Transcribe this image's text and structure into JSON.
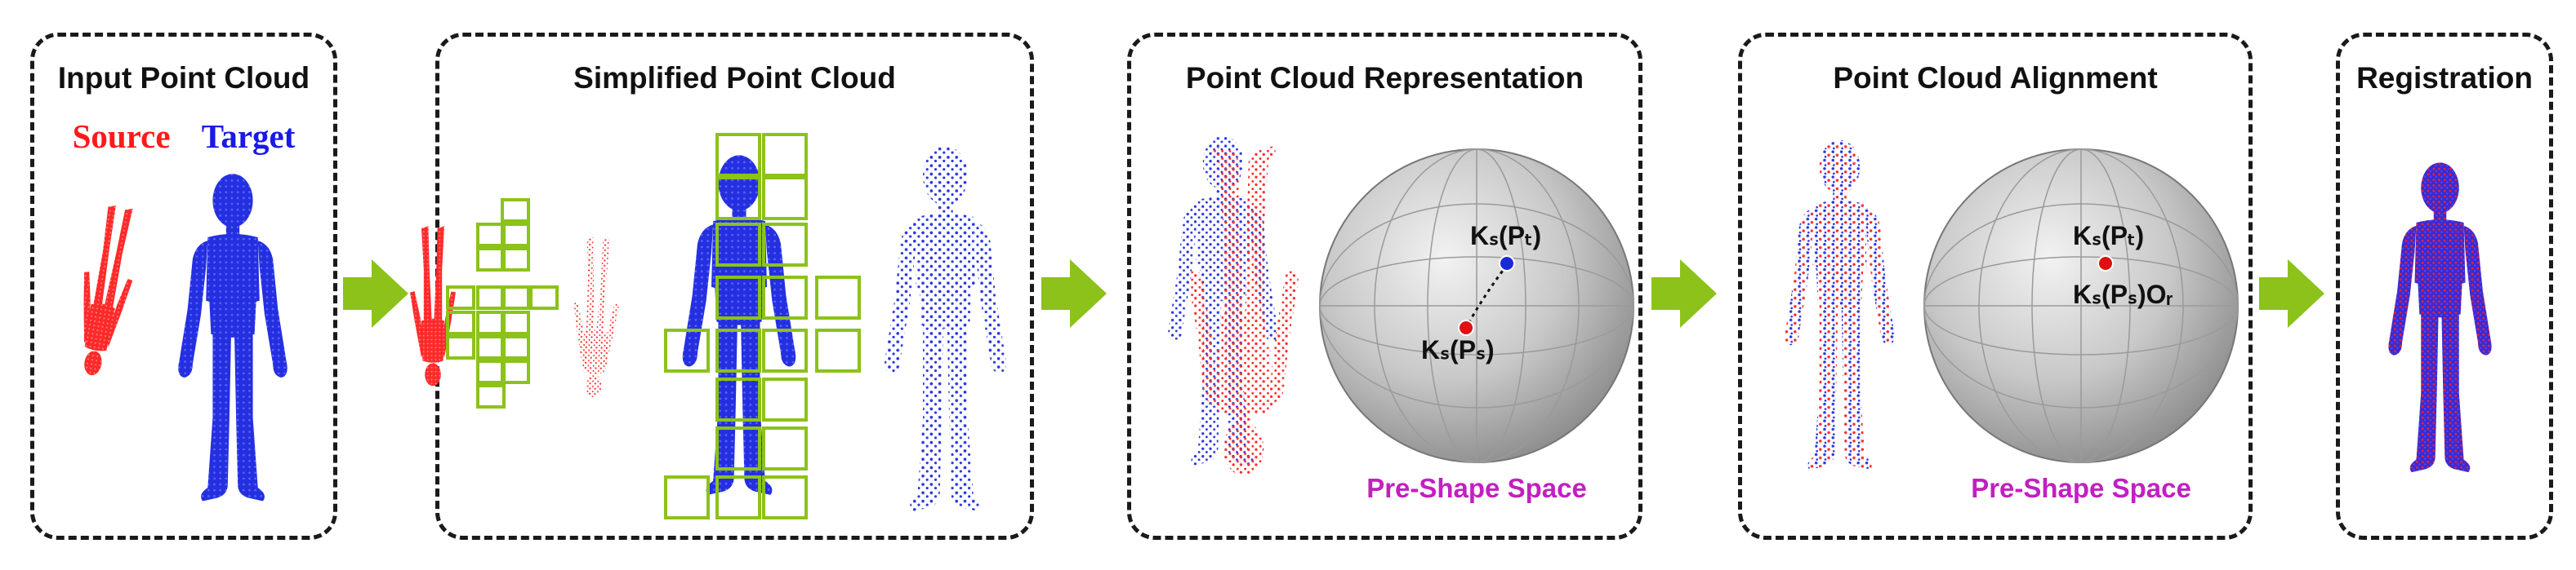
{
  "panels": [
    {
      "title": "Input Point Cloud"
    },
    {
      "title": "Simplified Point Cloud"
    },
    {
      "title": "Point Cloud Representation"
    },
    {
      "title": "Point Cloud Alignment"
    },
    {
      "title": "Registration"
    }
  ],
  "legend": {
    "source": "Source",
    "target": "Target",
    "source_color": "#ff1a1a",
    "target_color": "#1a1ae6"
  },
  "sphere_rep": {
    "label_t": "Kₛ(Pₜ)",
    "label_s": "Kₛ(Pₛ)",
    "caption": "Pre-Shape Space"
  },
  "sphere_align": {
    "label_t": "Kₛ(Pₜ)",
    "label_s": "Kₛ(Pₛ)Oᵣ",
    "caption": "Pre-Shape Space"
  },
  "colors": {
    "arrow": "#8cc21a",
    "box": "#8cc21a",
    "caption": "#c21fc2",
    "red_point": "#e01010",
    "blue_point": "#1a2ad6"
  }
}
